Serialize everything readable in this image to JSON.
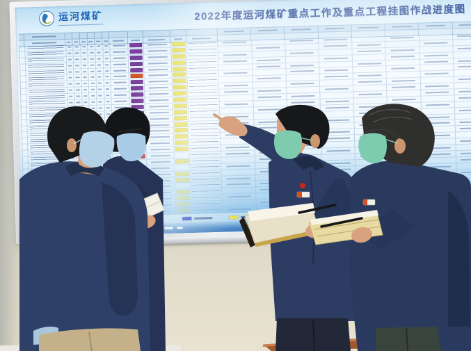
{
  "scene": {
    "description": "Four masked workers in navy coal-mine uniforms review a wall-mounted 2022 progress chart board",
    "wall_color": "#d7d6cf",
    "baseboard_color": "#a2592f",
    "skin_color": "#d7a27d"
  },
  "board": {
    "logo": {
      "text": "运河煤矿",
      "color": "#1f63b8"
    },
    "title": {
      "text": "2022年度运河煤矿重点工作及重点工程挂图作战进度图",
      "color": "#173c8e"
    },
    "bar_colors": {
      "purple": "#7b3fa0",
      "orange": "#d4562a",
      "indigo": "#463a9e",
      "red": "#c8281e",
      "navy": "#2b2f8e",
      "yellow": "#e4dc4a"
    },
    "legend": [
      {
        "swatch": "#2740c8"
      },
      {
        "swatch": "#e4dc4a"
      },
      {
        "swatch": "#c8281e"
      }
    ],
    "rows": [
      {
        "p": "purple",
        "y": true
      },
      {
        "p": "purple",
        "y": true
      },
      {
        "p": "purple",
        "y": true
      },
      {
        "p": "purple",
        "y": true
      },
      {
        "p": "purple",
        "y": true
      },
      {
        "p": "orange",
        "y": true
      },
      {
        "p": "purple",
        "y": true
      },
      {
        "p": "purple",
        "y": true
      },
      {
        "p": "purple",
        "y": true
      },
      {
        "p": "purple",
        "y": true
      },
      {
        "p": "purple",
        "y": true
      },
      {
        "p": "purple",
        "y": true
      },
      {
        "p": "purple",
        "y": true
      },
      {
        "p": "purple",
        "y": true
      },
      {
        "p": null,
        "y": true
      },
      {
        "p": "indigo",
        "y": true
      },
      {
        "p": "indigo",
        "y": true
      },
      {
        "p": "indigo",
        "y": true
      },
      {
        "p": "red",
        "y": false
      },
      {
        "p": null,
        "y": true
      },
      {
        "p": null,
        "y": false
      },
      {
        "p": "navy",
        "y": true
      },
      {
        "p": "navy",
        "y": true
      },
      {
        "p": "navy",
        "y": false
      },
      {
        "p": "navy",
        "y": true
      },
      {
        "p": null,
        "y": true
      },
      {
        "p": null,
        "y": true
      },
      {
        "p": null,
        "y": true
      }
    ]
  },
  "people": [
    {
      "id": "worker-1",
      "mask": "#b3d2e8",
      "jacket": "#2e4068",
      "pants": "#c4b089",
      "hair": "#191a1c"
    },
    {
      "id": "worker-2",
      "mask": "#a9cde6",
      "jacket": "#263356",
      "pants": "#1c1f27",
      "hair": "#141519",
      "notebook": "#f3f0e8"
    },
    {
      "id": "worker-3",
      "mask": "#7ecbb0",
      "jacket": "#2c3c62",
      "pants": "#232838",
      "hair": "#17181b",
      "notebook": "#e9e0c8"
    },
    {
      "id": "worker-4",
      "mask": "#7ecbb0",
      "jacket": "#2a3a5e",
      "pants": "#39453c",
      "hair": "#2f2f2e",
      "notebook": "#e8daa2"
    }
  ]
}
